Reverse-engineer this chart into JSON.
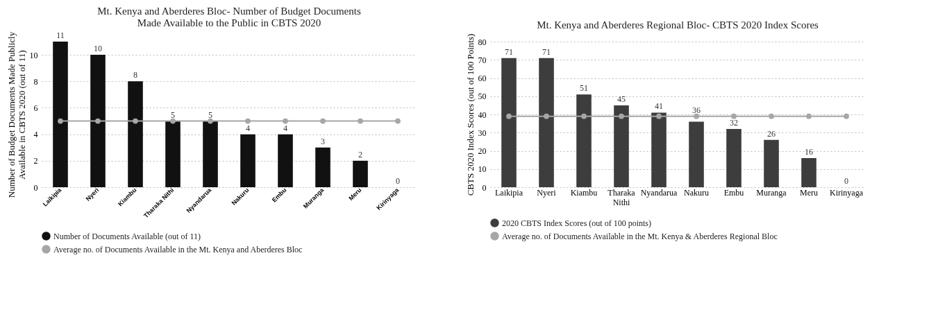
{
  "chart_data": [
    {
      "type": "bar",
      "title": "Mt. Kenya and Aberderes Bloc- Number of Budget Documents Made Available to the Public in CBTS 2020",
      "ylabel": "Number of Budget Documents Made Publicly Available in CBTS 2020 (out of 11)",
      "categories": [
        "Laikipia",
        "Nyeri",
        "Kiambu",
        "Tharaka Nithi",
        "Nyandarua",
        "Nakuru",
        "Embu",
        "Muranga",
        "Meru",
        "Kirinyaga"
      ],
      "series": [
        {
          "name": "Number of Documents Available (out of 11)",
          "color": "#111111",
          "values": [
            11,
            10,
            8,
            5,
            5,
            4,
            4,
            3,
            2,
            0
          ],
          "value_labels": [
            "11",
            "10",
            "8",
            "5",
            "5",
            "4",
            "4",
            "3",
            "2",
            "0"
          ]
        },
        {
          "name": "Average no. of Documents Available in the Mt. Kenya and Aberderes Bloc",
          "type": "line",
          "color": "#a6a6a6",
          "values": [
            5,
            5,
            5,
            5,
            5,
            5,
            5,
            5,
            5,
            5
          ]
        }
      ],
      "ylim": [
        0,
        11
      ],
      "yticks": [
        0,
        2,
        4,
        6,
        8,
        10
      ],
      "grid": "y",
      "legend": "bottom",
      "marker": "circle",
      "line_style": "solid"
    },
    {
      "type": "bar",
      "title": "Mt. Kenya and Aberderes Regional Bloc- CBTS 2020 Index Scores",
      "ylabel": "CBTS 2020 Index Scores (out of 100 Points)",
      "categories": [
        "Laikipia",
        "Nyeri",
        "Kiambu",
        "Tharaka Nithi",
        "Nyandarua",
        "Nakuru",
        "Embu",
        "Muranga",
        "Meru",
        "Kirinyaga"
      ],
      "series": [
        {
          "name": "2020 CBTS Index Scores (out of 100 points)",
          "color": "#3d3d3d",
          "values": [
            71,
            71,
            51,
            45,
            41,
            36,
            32,
            26,
            16,
            0
          ],
          "value_labels": [
            "71",
            "71",
            "51",
            "45",
            "41",
            "36",
            "32",
            "26",
            "16",
            "0"
          ]
        },
        {
          "name": "Average no. of Documents Available in the Mt. Kenya & Aberderes Regional Bloc",
          "type": "line",
          "color": "#a6a6a6",
          "values": [
            39,
            39,
            39,
            39,
            39,
            39,
            39,
            39,
            39,
            39
          ]
        }
      ],
      "ylim": [
        0,
        80
      ],
      "yticks": [
        0,
        10,
        20,
        30,
        40,
        50,
        60,
        70,
        80
      ],
      "grid": "y",
      "legend": "bottom",
      "marker": "circle",
      "line_style": "solid"
    }
  ]
}
